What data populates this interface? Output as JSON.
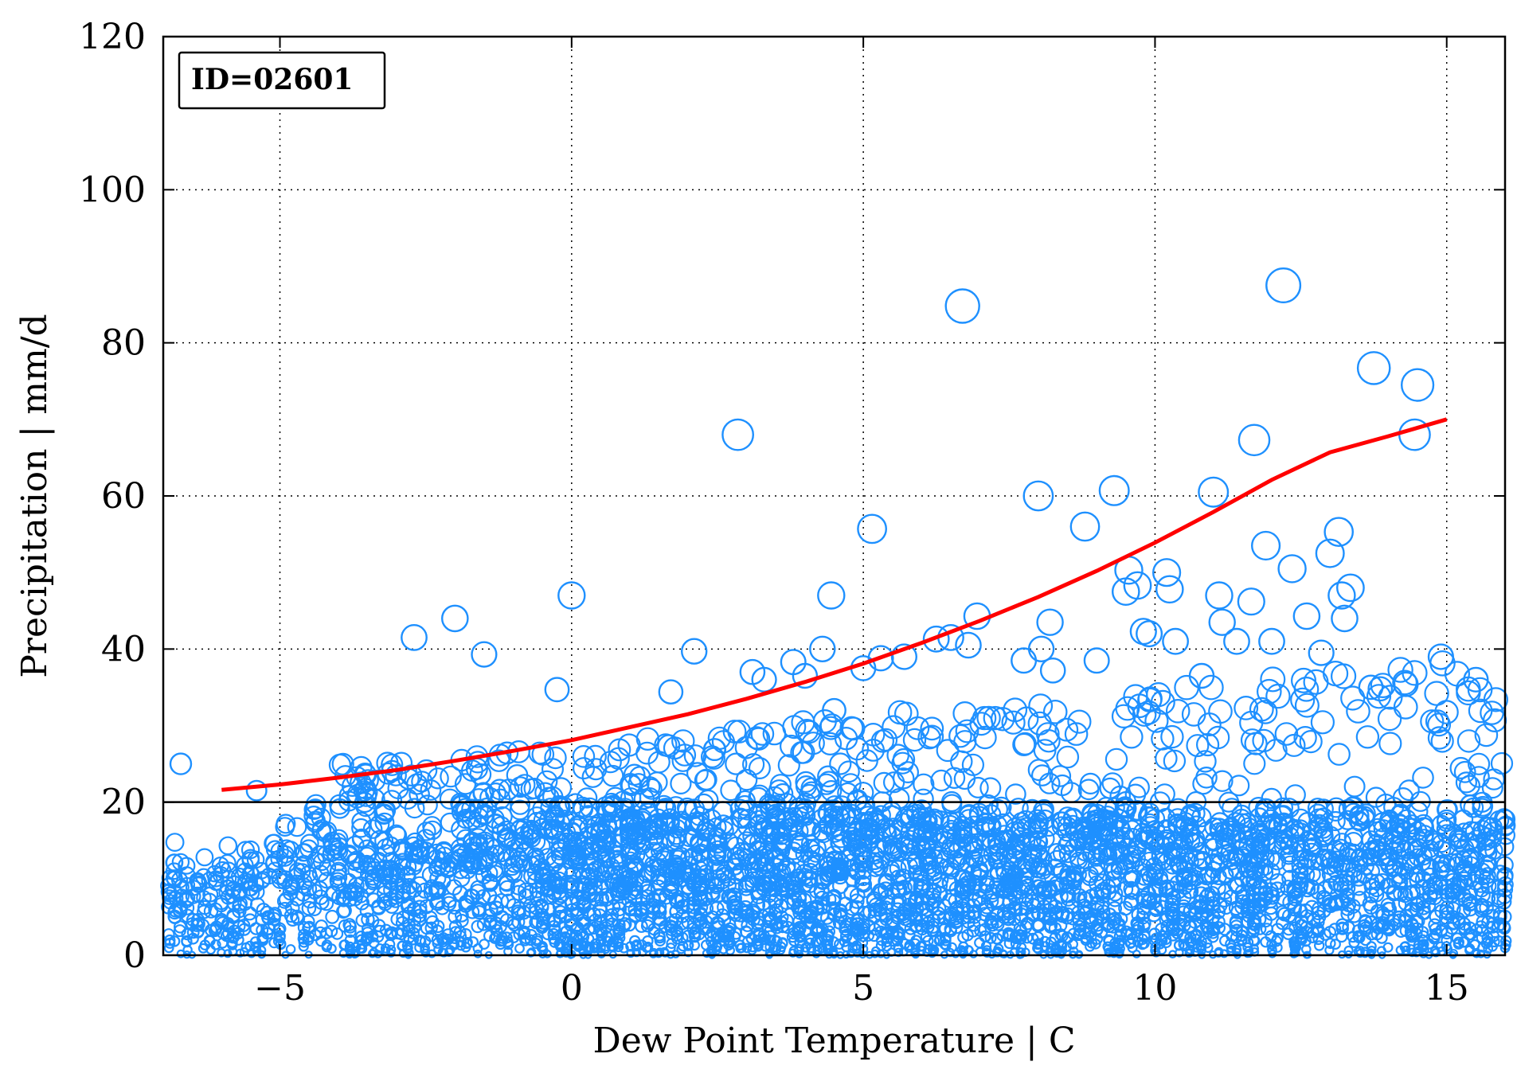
{
  "chart_data": {
    "type": "scatter",
    "title": "",
    "xlabel": "Dew Point Temperature | C",
    "ylabel": "Precipitation | mm/d",
    "xlim": [
      -7,
      16
    ],
    "ylim": [
      0,
      120
    ],
    "grid": true,
    "grid_style": "dotted",
    "x_ticks": [
      -5,
      0,
      5,
      10,
      15
    ],
    "x_tick_labels": [
      "−5",
      "0",
      "5",
      "10",
      "15"
    ],
    "y_ticks": [
      0,
      20,
      40,
      60,
      80,
      100,
      120
    ],
    "y_tick_labels": [
      "0",
      "20",
      "40",
      "60",
      "80",
      "100",
      "120"
    ],
    "annotation": "ID=02601",
    "reference_line": {
      "y": 20,
      "color": "#000000"
    },
    "colors": {
      "points": "#1e90ff",
      "curve": "#ff0000",
      "frame": "#000000",
      "grid": "#000000"
    },
    "marker": "open circle, size proportional to precipitation",
    "fit_curve": {
      "x": [
        -6,
        -5,
        -4,
        -3,
        -2,
        -1,
        0,
        1,
        2,
        3,
        4,
        5,
        6,
        7,
        8,
        9,
        10,
        11,
        12,
        13,
        14,
        15
      ],
      "y": [
        21.6,
        22.3,
        23.2,
        24.2,
        25.4,
        26.7,
        28.1,
        29.8,
        31.5,
        33.5,
        35.7,
        38.1,
        40.8,
        43.7,
        46.8,
        50.2,
        53.9,
        57.9,
        62.1,
        65.7,
        67.8,
        70.0
      ]
    },
    "series": [
      {
        "x": [
          -6.7,
          -5.4,
          -2.7,
          -2.0,
          -1.5,
          -0.25,
          0.0,
          1.7,
          2.1,
          2.85,
          3.1,
          3.3,
          3.8,
          4.0,
          4.3,
          4.45,
          4.5,
          5.0,
          5.15,
          5.3,
          5.7,
          6.25,
          6.5,
          6.7,
          6.8,
          6.95,
          7.75,
          8.0,
          8.05,
          8.2,
          8.25,
          8.8,
          9.0,
          9.3,
          9.5,
          9.55,
          9.7,
          9.8,
          9.9,
          10.2,
          10.25,
          10.35,
          10.8,
          11.0,
          11.1,
          11.15,
          11.4,
          11.65,
          11.7,
          11.9,
          12.0,
          12.2,
          12.35,
          12.6,
          12.85,
          13.0,
          13.15,
          13.2,
          13.25,
          13.35,
          13.7,
          13.75,
          14.3,
          14.45,
          14.5,
          14.9,
          15.5
        ],
        "y": [
          25.0,
          21.5,
          41.5,
          44.0,
          39.3,
          34.7,
          47.0,
          34.4,
          39.7,
          68.0,
          37.0,
          36.0,
          38.3,
          36.5,
          40.0,
          47.0,
          32.0,
          37.5,
          55.7,
          38.8,
          39.0,
          41.3,
          41.5,
          84.8,
          40.5,
          44.3,
          38.5,
          60.0,
          40.0,
          43.5,
          37.2,
          56.0,
          38.5,
          60.7,
          47.5,
          50.3,
          48.3,
          42.3,
          42.0,
          50.0,
          47.8,
          41.0,
          36.5,
          60.5,
          47.0,
          43.5,
          41.0,
          46.2,
          67.3,
          53.5,
          41.0,
          87.5,
          50.5,
          44.3,
          39.5,
          52.5,
          55.3,
          47.0,
          44.0,
          48.0,
          35.0,
          76.7,
          35.4,
          68.0,
          74.5,
          39.0,
          36.0
        ]
      }
    ],
    "dense_band": {
      "x_range": [
        -6.9,
        16
      ],
      "y_range": [
        0,
        20
      ],
      "note": "thousands of overlapping small circles at every 0.1 degree step below 20 mm/d"
    }
  }
}
